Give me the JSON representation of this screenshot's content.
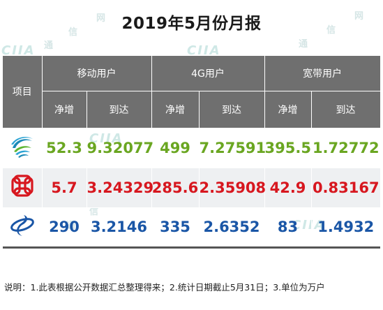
{
  "title": "2019年5月份月报",
  "table": {
    "item_header": "项目",
    "groups": [
      "移动用户",
      "4G用户",
      "宽带用户"
    ],
    "sub_headers": [
      "净增",
      "到达",
      "净增",
      "到达",
      "净增",
      "到达"
    ],
    "rows": [
      {
        "operator_logo": "china-mobile-logo",
        "color": "#6aa621",
        "values": [
          "52.3",
          "9.32077",
          "499",
          "7.27591",
          "395.5",
          "1.72772"
        ]
      },
      {
        "operator_logo": "china-unicom-logo",
        "color": "#d7171f",
        "values": [
          "5.7",
          "3.24329",
          "285.6",
          "2.35908",
          "42.9",
          "0.83167"
        ]
      },
      {
        "operator_logo": "china-telecom-logo",
        "color": "#1a56a6",
        "values": [
          "290",
          "3.2146",
          "335",
          "2.6352",
          "83",
          "1.4932"
        ]
      }
    ]
  },
  "note": "说明：1.此表根据公开数据汇总整理得来；2.统计日期截止5月31日；3.单位为万户",
  "watermark": {
    "chars": [
      "通",
      "信",
      "网",
      "通",
      "信",
      "网",
      "通",
      "信",
      "网"
    ],
    "logo_text": "CIIA"
  }
}
